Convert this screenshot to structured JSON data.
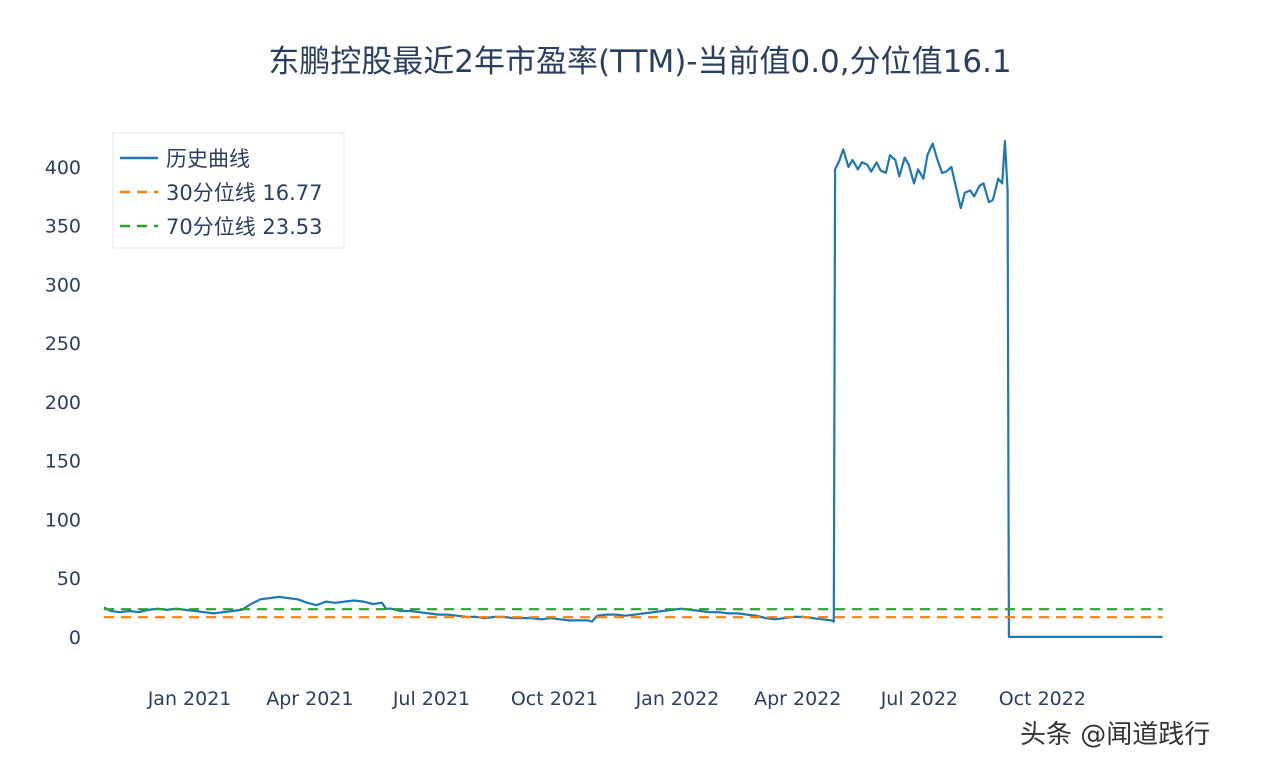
{
  "chart_data": {
    "type": "line",
    "title": "东鹏控股最近2年市盈率(TTM)-当前值0.0,分位值16.1",
    "xlabel": "",
    "ylabel": "",
    "x_range": [
      "2020-10-26",
      "2023-01-12"
    ],
    "ylim": [
      -35,
      440
    ],
    "y_ticks": [
      0,
      50,
      100,
      150,
      200,
      250,
      300,
      350,
      400
    ],
    "x_ticks": [
      {
        "date": "2021-01-01",
        "label": "Jan 2021"
      },
      {
        "date": "2021-04-01",
        "label": "Apr 2021"
      },
      {
        "date": "2021-07-01",
        "label": "Jul 2021"
      },
      {
        "date": "2021-10-01",
        "label": "Oct 2021"
      },
      {
        "date": "2022-01-01",
        "label": "Jan 2022"
      },
      {
        "date": "2022-04-01",
        "label": "Apr 2022"
      },
      {
        "date": "2022-07-01",
        "label": "Jul 2022"
      },
      {
        "date": "2022-10-01",
        "label": "Oct 2022"
      }
    ],
    "grid": false,
    "legend_position": "top-left",
    "series": [
      {
        "name": "历史曲线",
        "color": "#1f77b4",
        "dash": "solid",
        "points": [
          [
            "2020-10-29",
            25
          ],
          [
            "2020-11-03",
            22
          ],
          [
            "2020-11-10",
            21
          ],
          [
            "2020-11-17",
            22
          ],
          [
            "2020-11-24",
            21
          ],
          [
            "2020-12-01",
            23
          ],
          [
            "2020-12-08",
            24
          ],
          [
            "2020-12-15",
            23
          ],
          [
            "2020-12-22",
            24
          ],
          [
            "2020-12-29",
            23
          ],
          [
            "2021-01-05",
            22
          ],
          [
            "2021-01-12",
            21
          ],
          [
            "2021-01-19",
            20
          ],
          [
            "2021-01-26",
            21
          ],
          [
            "2021-02-02",
            22
          ],
          [
            "2021-02-09",
            23
          ],
          [
            "2021-02-16",
            28
          ],
          [
            "2021-02-23",
            32
          ],
          [
            "2021-03-02",
            33
          ],
          [
            "2021-03-09",
            34
          ],
          [
            "2021-03-16",
            33
          ],
          [
            "2021-03-23",
            32
          ],
          [
            "2021-03-30",
            29
          ],
          [
            "2021-04-06",
            27
          ],
          [
            "2021-04-13",
            30
          ],
          [
            "2021-04-20",
            29
          ],
          [
            "2021-04-27",
            30
          ],
          [
            "2021-05-04",
            31
          ],
          [
            "2021-05-11",
            30
          ],
          [
            "2021-05-18",
            28
          ],
          [
            "2021-05-25",
            29
          ],
          [
            "2021-05-28",
            24
          ],
          [
            "2021-06-01",
            24
          ],
          [
            "2021-06-08",
            22
          ],
          [
            "2021-06-15",
            22
          ],
          [
            "2021-06-22",
            21
          ],
          [
            "2021-06-29",
            20
          ],
          [
            "2021-07-06",
            19
          ],
          [
            "2021-07-13",
            19
          ],
          [
            "2021-07-20",
            18
          ],
          [
            "2021-07-27",
            17
          ],
          [
            "2021-08-03",
            17
          ],
          [
            "2021-08-10",
            16
          ],
          [
            "2021-08-17",
            17
          ],
          [
            "2021-08-24",
            17
          ],
          [
            "2021-08-31",
            16
          ],
          [
            "2021-09-07",
            16
          ],
          [
            "2021-09-14",
            16
          ],
          [
            "2021-09-21",
            15
          ],
          [
            "2021-09-28",
            16
          ],
          [
            "2021-10-05",
            15
          ],
          [
            "2021-10-12",
            14
          ],
          [
            "2021-10-19",
            14
          ],
          [
            "2021-10-26",
            14
          ],
          [
            "2021-10-29",
            13
          ],
          [
            "2021-11-02",
            18
          ],
          [
            "2021-11-09",
            19
          ],
          [
            "2021-11-16",
            19
          ],
          [
            "2021-11-23",
            18
          ],
          [
            "2021-11-30",
            19
          ],
          [
            "2021-12-07",
            20
          ],
          [
            "2021-12-14",
            21
          ],
          [
            "2021-12-21",
            22
          ],
          [
            "2021-12-28",
            23
          ],
          [
            "2022-01-04",
            24
          ],
          [
            "2022-01-11",
            23
          ],
          [
            "2022-01-18",
            22
          ],
          [
            "2022-01-25",
            21
          ],
          [
            "2022-02-01",
            21
          ],
          [
            "2022-02-08",
            20
          ],
          [
            "2022-02-15",
            20
          ],
          [
            "2022-02-22",
            19
          ],
          [
            "2022-03-01",
            18
          ],
          [
            "2022-03-08",
            16
          ],
          [
            "2022-03-15",
            15
          ],
          [
            "2022-03-22",
            16
          ],
          [
            "2022-03-29",
            17
          ],
          [
            "2022-04-05",
            17
          ],
          [
            "2022-04-12",
            16
          ],
          [
            "2022-04-19",
            15
          ],
          [
            "2022-04-26",
            14
          ],
          [
            "2022-04-28",
            13
          ],
          [
            "2022-04-29",
            398
          ],
          [
            "2022-05-02",
            405
          ],
          [
            "2022-05-05",
            415
          ],
          [
            "2022-05-09",
            400
          ],
          [
            "2022-05-12",
            406
          ],
          [
            "2022-05-16",
            398
          ],
          [
            "2022-05-19",
            404
          ],
          [
            "2022-05-23",
            402
          ],
          [
            "2022-05-26",
            396
          ],
          [
            "2022-05-30",
            404
          ],
          [
            "2022-06-02",
            397
          ],
          [
            "2022-06-06",
            395
          ],
          [
            "2022-06-09",
            410
          ],
          [
            "2022-06-13",
            406
          ],
          [
            "2022-06-16",
            392
          ],
          [
            "2022-06-20",
            408
          ],
          [
            "2022-06-23",
            402
          ],
          [
            "2022-06-27",
            386
          ],
          [
            "2022-06-30",
            398
          ],
          [
            "2022-07-04",
            390
          ],
          [
            "2022-07-07",
            410
          ],
          [
            "2022-07-11",
            420
          ],
          [
            "2022-07-14",
            408
          ],
          [
            "2022-07-18",
            395
          ],
          [
            "2022-07-21",
            396
          ],
          [
            "2022-07-25",
            400
          ],
          [
            "2022-07-28",
            385
          ],
          [
            "2022-08-01",
            365
          ],
          [
            "2022-08-04",
            378
          ],
          [
            "2022-08-08",
            380
          ],
          [
            "2022-08-11",
            375
          ],
          [
            "2022-08-15",
            384
          ],
          [
            "2022-08-18",
            386
          ],
          [
            "2022-08-22",
            370
          ],
          [
            "2022-08-25",
            372
          ],
          [
            "2022-08-29",
            390
          ],
          [
            "2022-09-01",
            386
          ],
          [
            "2022-09-03",
            422
          ],
          [
            "2022-09-05",
            380
          ],
          [
            "2022-09-06",
            0
          ],
          [
            "2022-09-20",
            0
          ],
          [
            "2022-10-10",
            0
          ],
          [
            "2022-11-01",
            0
          ],
          [
            "2022-12-01",
            0
          ],
          [
            "2022-12-30",
            0
          ]
        ]
      },
      {
        "name": "30分位线 16.77",
        "color": "#ff7f0e",
        "dash": "dashed",
        "constant": 16.77,
        "x": [
          "2020-10-29",
          "2022-12-30"
        ]
      },
      {
        "name": "70分位线 23.53",
        "color": "#2ca02c",
        "dash": "dashed",
        "constant": 23.53,
        "x": [
          "2020-10-29",
          "2022-12-30"
        ]
      }
    ],
    "annotations": []
  },
  "watermark": "头条 @闻道践行"
}
